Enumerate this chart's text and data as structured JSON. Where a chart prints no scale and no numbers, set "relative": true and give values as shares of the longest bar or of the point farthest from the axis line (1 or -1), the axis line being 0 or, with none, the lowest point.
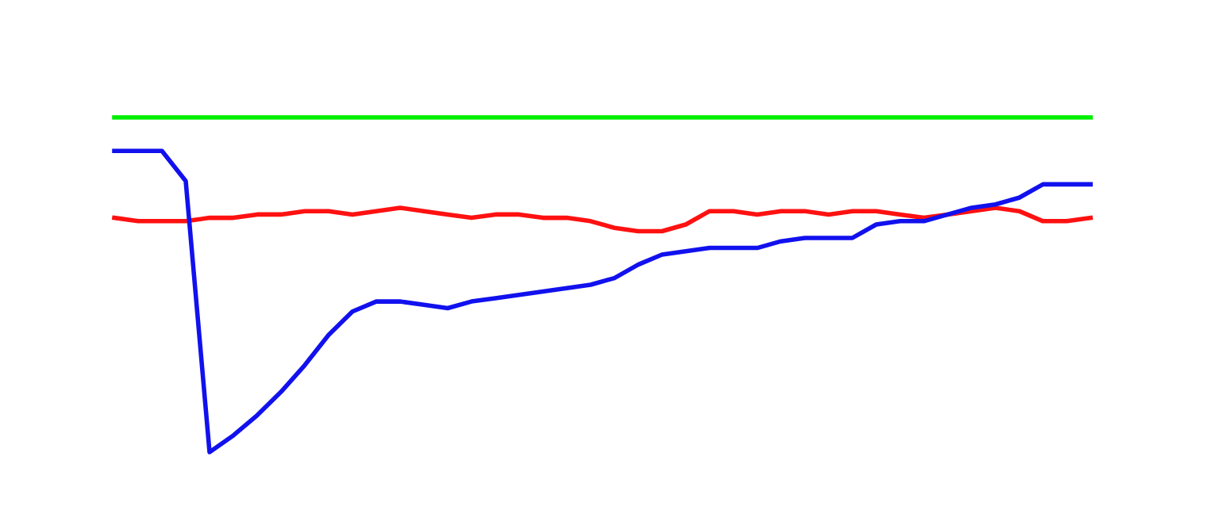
{
  "chart_data": {
    "type": "line",
    "relative": true,
    "marker": "none",
    "line_style": "solid",
    "categories": [
      null,
      null,
      null,
      null,
      null,
      null,
      null,
      null,
      null,
      null,
      null,
      null,
      null,
      null,
      null,
      null,
      null,
      null,
      null,
      null,
      null,
      null,
      null,
      null,
      null,
      null,
      null,
      null,
      null,
      null,
      null,
      null,
      null,
      null,
      null,
      null,
      null,
      null,
      null,
      null,
      null,
      null
    ],
    "series": [
      {
        "color": "#00ee00",
        "values": [
          1,
          1,
          1,
          1,
          1,
          1,
          1,
          1,
          1,
          1,
          1,
          1,
          1,
          1,
          1,
          1,
          1,
          1,
          1,
          1,
          1,
          1,
          1,
          1,
          1,
          1,
          1,
          1,
          1,
          1,
          1,
          1,
          1,
          1,
          1,
          1,
          1,
          1,
          1,
          1,
          1,
          1
        ]
      },
      {
        "color": "#ff1111",
        "values": [
          0.7,
          0.69,
          0.69,
          0.69,
          0.7,
          0.7,
          0.71,
          0.71,
          0.72,
          0.72,
          0.71,
          0.72,
          0.73,
          0.72,
          0.71,
          0.7,
          0.71,
          0.71,
          0.7,
          0.7,
          0.69,
          0.67,
          0.66,
          0.66,
          0.68,
          0.72,
          0.72,
          0.71,
          0.72,
          0.72,
          0.71,
          0.72,
          0.72,
          0.71,
          0.7,
          0.71,
          0.72,
          0.73,
          0.72,
          0.69,
          0.69,
          0.7
        ]
      },
      {
        "color": "#1111ee",
        "values": [
          0.9,
          0.9,
          0.9,
          0.81,
          0,
          0.05,
          0.11,
          0.18,
          0.26,
          0.35,
          0.42,
          0.45,
          0.45,
          0.44,
          0.43,
          0.45,
          0.46,
          0.47,
          0.48,
          0.49,
          0.5,
          0.52,
          0.56,
          0.59,
          0.6,
          0.61,
          0.61,
          0.61,
          0.63,
          0.64,
          0.64,
          0.64,
          0.68,
          0.69,
          0.69,
          0.71,
          0.73,
          0.74,
          0.76,
          0.8,
          0.8,
          0.8
        ]
      }
    ]
  }
}
